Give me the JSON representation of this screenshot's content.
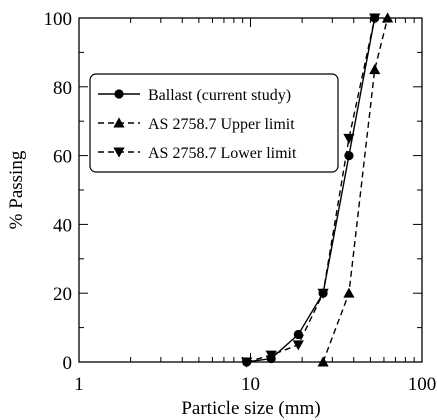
{
  "chart_data": {
    "type": "line",
    "x_scale": "log",
    "xlim": [
      1,
      100
    ],
    "ylim": [
      0,
      100
    ],
    "xlabel": "Particle size (mm)",
    "ylabel": "% Passing",
    "x_ticks": [
      1,
      10,
      100
    ],
    "x_tick_labels": [
      "1",
      "10",
      "100"
    ],
    "y_ticks": [
      0,
      20,
      40,
      60,
      80,
      100
    ],
    "y_tick_labels": [
      "0",
      "20",
      "40",
      "60",
      "80",
      "100"
    ],
    "grid": false,
    "legend_position": "upper-left",
    "series": [
      {
        "name": "Ballast (current study)",
        "line_style": "solid",
        "marker": "circle",
        "color": "#000000",
        "x": [
          9.5,
          13.2,
          19,
          26.5,
          37.5,
          53
        ],
        "y": [
          0,
          1,
          8,
          20,
          60,
          100
        ]
      },
      {
        "name": "AS 2758.7 Upper limit",
        "line_style": "dashed",
        "marker": "triangle-up",
        "color": "#000000",
        "x": [
          26.5,
          37.5,
          53,
          63
        ],
        "y": [
          0,
          20,
          85,
          100
        ]
      },
      {
        "name": "AS 2758.7 Lower limit",
        "line_style": "dashed",
        "marker": "triangle-down",
        "color": "#000000",
        "x": [
          9.5,
          13.2,
          19,
          26.5,
          37.5,
          53
        ],
        "y": [
          0,
          2,
          5,
          20,
          65,
          100
        ]
      }
    ]
  }
}
